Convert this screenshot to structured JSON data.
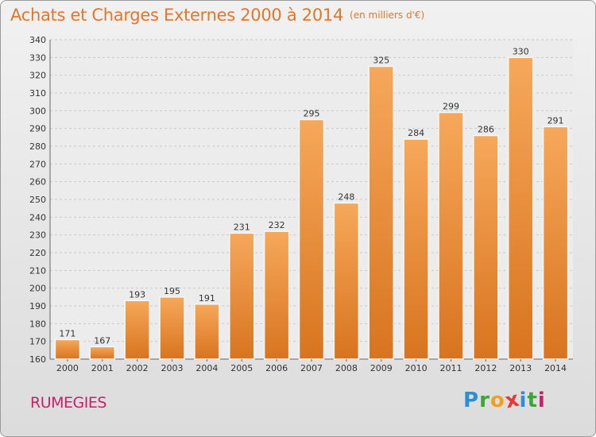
{
  "title": "Achats et Charges Externes 2000 à 2014",
  "unit_label": "(en milliers d'€)",
  "commune": "RUMEGIES",
  "brand": {
    "letters": [
      "P",
      "r",
      "o",
      "x",
      "i",
      "t",
      "i"
    ],
    "colors": [
      "#2c8fd6",
      "#3aa63a",
      "#f0a020",
      "#e63a3a",
      "#2c8fd6",
      "#3aa63a",
      "#c8206b"
    ]
  },
  "colors": {
    "bar_light": "#f6a85a",
    "bar_dark": "#d8741f",
    "title": "#e4762a",
    "commune": "#c8206b"
  },
  "chart_data": {
    "type": "bar",
    "title": "Achats et Charges Externes 2000 à 2014",
    "subtitle": "(en milliers d'€)",
    "xlabel": "",
    "ylabel": "",
    "categories": [
      "2000",
      "2001",
      "2002",
      "2003",
      "2004",
      "2005",
      "2006",
      "2007",
      "2008",
      "2009",
      "2010",
      "2011",
      "2012",
      "2013",
      "2014"
    ],
    "values": [
      171,
      167,
      193,
      195,
      191,
      231,
      232,
      295,
      248,
      325,
      284,
      299,
      286,
      330,
      291
    ],
    "ylim": [
      160,
      340
    ],
    "yticks": [
      160,
      170,
      180,
      190,
      200,
      210,
      220,
      230,
      240,
      250,
      260,
      270,
      280,
      290,
      300,
      310,
      320,
      330,
      340
    ],
    "grid": true,
    "data_labels": true
  }
}
